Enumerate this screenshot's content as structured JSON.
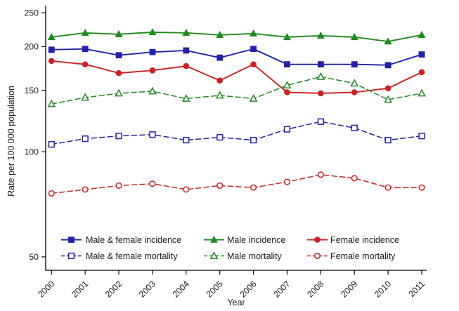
{
  "chart_data": {
    "type": "line",
    "title": "",
    "xlabel": "Year",
    "ylabel": "Rate per 100 000 population",
    "x": [
      2000,
      2001,
      2002,
      2003,
      2004,
      2005,
      2006,
      2007,
      2008,
      2009,
      2010,
      2011
    ],
    "y_axis": {
      "scale": "log",
      "ticks": [
        50,
        100,
        150,
        200,
        250
      ],
      "range": [
        48,
        265
      ],
      "grid": false
    },
    "legend_position": "bottom-inside",
    "series": [
      {
        "name": "Male & female incidence",
        "color": "#2121aa",
        "line": "solid",
        "marker": "square",
        "fill": "filled",
        "values": [
          196,
          197,
          189,
          193,
          195,
          186,
          197,
          178,
          178,
          178,
          177,
          190
        ]
      },
      {
        "name": "Male incidence",
        "color": "#1f8a1f",
        "line": "solid",
        "marker": "triangle",
        "fill": "filled",
        "values": [
          213,
          219,
          217,
          220,
          219,
          216,
          218,
          213,
          215,
          213,
          207,
          216
        ]
      },
      {
        "name": "Female incidence",
        "color": "#cc2222",
        "line": "solid",
        "marker": "circle",
        "fill": "filled",
        "values": [
          182,
          178,
          168,
          171,
          176,
          160,
          178,
          148,
          147,
          148,
          152,
          169
        ]
      },
      {
        "name": "Male & female mortality",
        "color": "#2121aa",
        "line": "dashed",
        "marker": "square",
        "fill": "open",
        "values": [
          105,
          109,
          111,
          112,
          108,
          110,
          108,
          116,
          122,
          117,
          108,
          111
        ]
      },
      {
        "name": "Male mortality",
        "color": "#1f8a1f",
        "line": "dashed",
        "marker": "triangle",
        "fill": "open",
        "values": [
          137,
          143,
          147,
          149,
          142,
          145,
          142,
          155,
          164,
          157,
          141,
          147
        ]
      },
      {
        "name": "Female mortality",
        "color": "#cc2222",
        "line": "dashed",
        "marker": "circle",
        "fill": "open",
        "values": [
          76,
          78,
          80,
          81,
          78,
          80,
          79,
          82,
          86,
          84,
          79,
          79
        ]
      }
    ]
  }
}
